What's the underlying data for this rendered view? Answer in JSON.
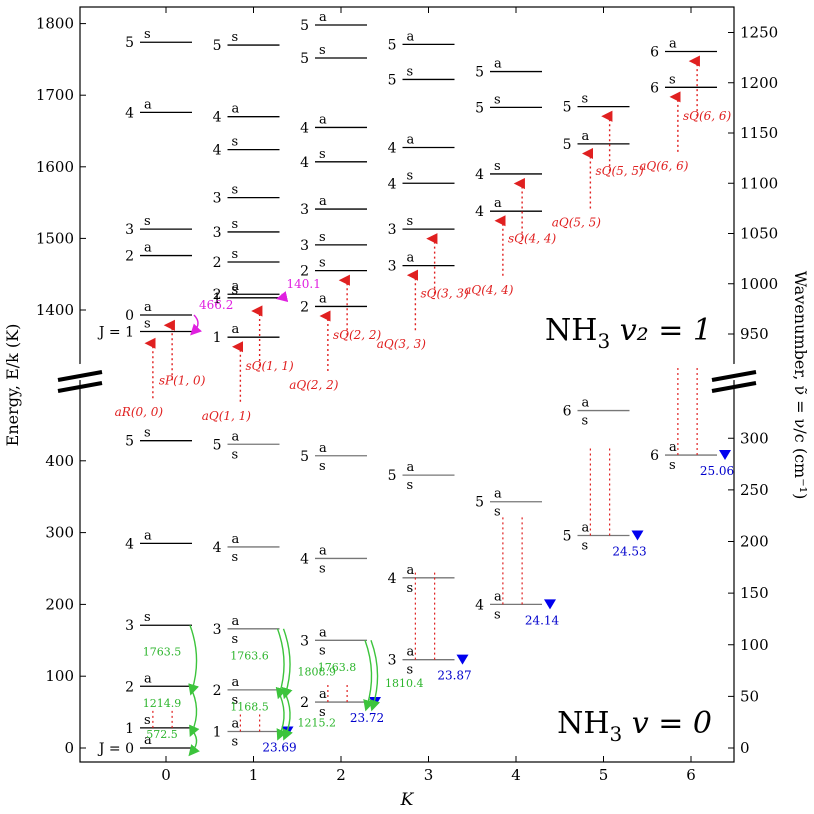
{
  "chart_data": {
    "type": "energy-level-diagram",
    "xlabel": "K",
    "ylabel_left": "Energy, E/k (K)",
    "ylabel_right": "Wavenumber, ν̃ = ν/c (cm⁻¹)",
    "x_ticks": [
      "0",
      "1",
      "2",
      "3",
      "4",
      "5",
      "6"
    ],
    "xlim": [
      -1,
      6.4
    ],
    "upper_panel": {
      "label_main": "NH",
      "label_sub": "3",
      "label_rest": "v₂ = 1",
      "left_ticks": [
        "1400",
        "1500",
        "1600",
        "1700",
        "1800"
      ],
      "left_tick_values": [
        1400,
        1500,
        1600,
        1700,
        1800
      ],
      "right_ticks": [
        "950",
        "1000",
        "1050",
        "1100",
        "1150",
        "1200",
        "1250"
      ],
      "right_tick_values": [
        950,
        1000,
        1050,
        1100,
        1150,
        1200,
        1250
      ],
      "levels": [
        {
          "K": 0,
          "J": "J = 1",
          "E": 1370,
          "sym": "s"
        },
        {
          "K": 0,
          "J": "0",
          "E": 1393,
          "sym": "a"
        },
        {
          "K": 0,
          "J": "2",
          "E": 1476,
          "sym": "a"
        },
        {
          "K": 0,
          "J": "3",
          "E": 1513,
          "sym": "s"
        },
        {
          "K": 0,
          "J": "4",
          "E": 1676,
          "sym": "a"
        },
        {
          "K": 0,
          "J": "5",
          "E": 1774,
          "sym": "s"
        },
        {
          "K": 1,
          "J": "1",
          "E": 1362,
          "sym": "a"
        },
        {
          "K": 1,
          "J": "1",
          "E": 1417,
          "sym": "s"
        },
        {
          "K": 1,
          "J": "2",
          "E": 1422,
          "sym": "a"
        },
        {
          "K": 1,
          "J": "2",
          "E": 1467,
          "sym": "s"
        },
        {
          "K": 1,
          "J": "3",
          "E": 1509,
          "sym": "s"
        },
        {
          "K": 1,
          "J": "3",
          "E": 1557,
          "sym": "s"
        },
        {
          "K": 1,
          "J": "4",
          "E": 1624,
          "sym": "s"
        },
        {
          "K": 1,
          "J": "4",
          "E": 1670,
          "sym": "a"
        },
        {
          "K": 1,
          "J": "5",
          "E": 1770,
          "sym": "s"
        },
        {
          "K": 2,
          "J": "2",
          "E": 1405,
          "sym": "a"
        },
        {
          "K": 2,
          "J": "2",
          "E": 1455,
          "sym": "s"
        },
        {
          "K": 2,
          "J": "3",
          "E": 1491,
          "sym": "s"
        },
        {
          "K": 2,
          "J": "3",
          "E": 1541,
          "sym": "a"
        },
        {
          "K": 2,
          "J": "4",
          "E": 1607,
          "sym": "s"
        },
        {
          "K": 2,
          "J": "4",
          "E": 1655,
          "sym": "a"
        },
        {
          "K": 2,
          "J": "5",
          "E": 1752,
          "sym": "s"
        },
        {
          "K": 2,
          "J": "5",
          "E": 1798,
          "sym": "a"
        },
        {
          "K": 3,
          "J": "3",
          "E": 1462,
          "sym": "a"
        },
        {
          "K": 3,
          "J": "3",
          "E": 1513,
          "sym": "s"
        },
        {
          "K": 3,
          "J": "4",
          "E": 1577,
          "sym": "s"
        },
        {
          "K": 3,
          "J": "4",
          "E": 1627,
          "sym": "a"
        },
        {
          "K": 3,
          "J": "5",
          "E": 1722,
          "sym": "s"
        },
        {
          "K": 3,
          "J": "5",
          "E": 1771,
          "sym": "a"
        },
        {
          "K": 4,
          "J": "4",
          "E": 1538,
          "sym": "a"
        },
        {
          "K": 4,
          "J": "4",
          "E": 1590,
          "sym": "s"
        },
        {
          "K": 4,
          "J": "5",
          "E": 1683,
          "sym": "s"
        },
        {
          "K": 4,
          "J": "5",
          "E": 1733,
          "sym": "a"
        },
        {
          "K": 5,
          "J": "5",
          "E": 1632,
          "sym": "a"
        },
        {
          "K": 5,
          "J": "5",
          "E": 1684,
          "sym": "s"
        },
        {
          "K": 6,
          "J": "6",
          "E": 1711,
          "sym": "s"
        },
        {
          "K": 6,
          "J": "6",
          "E": 1761,
          "sym": "a"
        }
      ]
    },
    "lower_panel": {
      "label_main": "NH",
      "label_sub": "3",
      "label_rest": "v = 0",
      "left_ticks": [
        "0",
        "100",
        "200",
        "300",
        "400"
      ],
      "left_tick_values": [
        0,
        100,
        200,
        300,
        400
      ],
      "right_ticks": [
        "0",
        "50",
        "100",
        "150",
        "200",
        "250",
        "300"
      ],
      "right_tick_values": [
        0,
        50,
        100,
        150,
        200,
        250,
        300
      ],
      "levels": [
        {
          "K": 0,
          "J": "J = 0",
          "E": 0,
          "syms": [
            "a"
          ]
        },
        {
          "K": 0,
          "J": "1",
          "E": 28,
          "syms": [
            "s"
          ]
        },
        {
          "K": 0,
          "J": "2",
          "E": 86,
          "syms": [
            "a"
          ]
        },
        {
          "K": 0,
          "J": "3",
          "E": 171,
          "syms": [
            "s"
          ]
        },
        {
          "K": 0,
          "J": "4",
          "E": 285,
          "syms": [
            "a"
          ]
        },
        {
          "K": 0,
          "J": "5",
          "E": 428,
          "syms": [
            "s"
          ]
        },
        {
          "K": 1,
          "J": "1",
          "E": 23,
          "syms": [
            "a",
            "s"
          ]
        },
        {
          "K": 1,
          "J": "2",
          "E": 81,
          "syms": [
            "a",
            "s"
          ]
        },
        {
          "K": 1,
          "J": "3",
          "E": 166,
          "syms": [
            "a",
            "s"
          ]
        },
        {
          "K": 1,
          "J": "4",
          "E": 280,
          "syms": [
            "a",
            "s"
          ]
        },
        {
          "K": 1,
          "J": "5",
          "E": 423,
          "syms": [
            "a",
            "s"
          ]
        },
        {
          "K": 2,
          "J": "2",
          "E": 64,
          "syms": [
            "a",
            "s"
          ]
        },
        {
          "K": 2,
          "J": "3",
          "E": 150,
          "syms": [
            "a",
            "s"
          ]
        },
        {
          "K": 2,
          "J": "4",
          "E": 264,
          "syms": [
            "a",
            "s"
          ]
        },
        {
          "K": 2,
          "J": "5",
          "E": 407,
          "syms": [
            "a",
            "s"
          ]
        },
        {
          "K": 3,
          "J": "3",
          "E": 123,
          "syms": [
            "a",
            "s"
          ]
        },
        {
          "K": 3,
          "J": "4",
          "E": 237,
          "syms": [
            "a",
            "s"
          ]
        },
        {
          "K": 3,
          "J": "5",
          "E": 380,
          "syms": [
            "a",
            "s"
          ]
        },
        {
          "K": 4,
          "J": "4",
          "E": 200,
          "syms": [
            "a",
            "s"
          ]
        },
        {
          "K": 4,
          "J": "5",
          "E": 343,
          "syms": [
            "a",
            "s"
          ]
        },
        {
          "K": 5,
          "J": "5",
          "E": 296,
          "syms": [
            "a",
            "s"
          ]
        },
        {
          "K": 5,
          "J": "6",
          "E": 470,
          "syms": [
            "a",
            "s"
          ]
        },
        {
          "K": 6,
          "J": "6",
          "E": 408,
          "syms": [
            "a",
            "s"
          ]
        }
      ],
      "inversion_labels": [
        {
          "K": 1,
          "E": 23,
          "text": "23.69"
        },
        {
          "K": 2,
          "E": 64,
          "text": "23.72"
        },
        {
          "K": 3,
          "E": 123,
          "text": "23.87"
        },
        {
          "K": 4,
          "E": 200,
          "text": "24.14"
        },
        {
          "K": 5,
          "E": 296,
          "text": "24.53"
        },
        {
          "K": 6,
          "E": 408,
          "text": "25.06"
        }
      ],
      "rotational_transitions": [
        {
          "K": 0,
          "text": "572.5",
          "E_from": 28,
          "E_to": 0
        },
        {
          "K": 0,
          "text": "1214.9",
          "E_from": 86,
          "E_to": 28
        },
        {
          "K": 0,
          "text": "1763.5",
          "E_from": 171,
          "E_to": 86
        },
        {
          "K": 1,
          "text": "1168.5",
          "E_from": 81,
          "E_to": 23
        },
        {
          "K": 1,
          "text": "1215.2",
          "E_from": 81,
          "E_to": 23
        },
        {
          "K": 1,
          "text": "1763.6",
          "E_from": 166,
          "E_to": 81
        },
        {
          "K": 1,
          "text": "1808.9",
          "E_from": 166,
          "E_to": 81
        },
        {
          "K": 2,
          "text": "1763.8",
          "E_from": 150,
          "E_to": 64
        },
        {
          "K": 2,
          "text": "1810.4",
          "E_from": 150,
          "E_to": 64
        }
      ]
    },
    "vibrational_transitions": [
      {
        "label": "aR(0, 0)",
        "K": -0.15,
        "E_up": 1362
      },
      {
        "label": "sP(1, 0)",
        "K": 0.07,
        "E_up": 1387
      },
      {
        "label": "aQ(1, 1)",
        "K": 0.85,
        "E_up": 1357
      },
      {
        "label": "sQ(1, 1)",
        "K": 1.07,
        "E_up": 1407
      },
      {
        "label": "aQ(2, 2)",
        "K": 1.85,
        "E_up": 1400
      },
      {
        "label": "sQ(2, 2)",
        "K": 2.07,
        "E_up": 1450
      },
      {
        "label": "aQ(3, 3)",
        "K": 2.85,
        "E_up": 1457
      },
      {
        "label": "sQ(3, 3)",
        "K": 3.07,
        "E_up": 1508
      },
      {
        "label": "aQ(4, 4)",
        "K": 3.85,
        "E_up": 1533
      },
      {
        "label": "sQ(4, 4)",
        "K": 4.07,
        "E_up": 1585
      },
      {
        "label": "aQ(5, 5)",
        "K": 4.85,
        "E_up": 1627
      },
      {
        "label": "sQ(5, 5)",
        "K": 5.07,
        "E_up": 1679
      },
      {
        "label": "aQ(6, 6)",
        "K": 5.85,
        "E_up": 1706
      },
      {
        "label": "sQ(6, 6)",
        "K": 6.07,
        "E_up": 1756
      }
    ],
    "inversion_upper": [
      {
        "K": 0,
        "text": "466.2",
        "E_from": 1393,
        "E_to": 1370
      },
      {
        "K": 1,
        "text": "140.1",
        "E_from": 1422,
        "E_to": 1417
      }
    ]
  }
}
